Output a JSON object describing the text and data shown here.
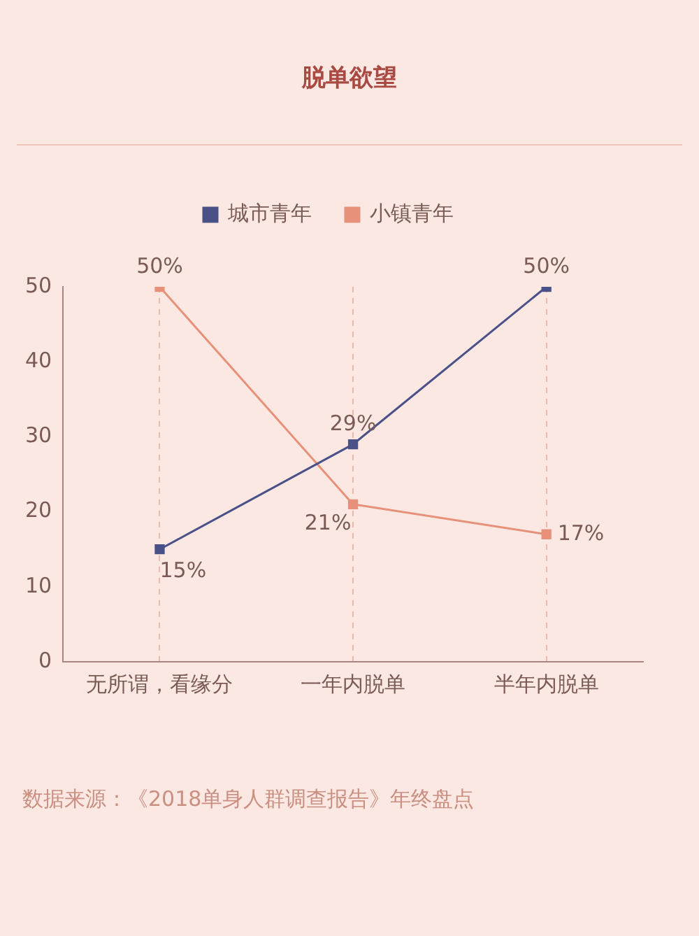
{
  "chart_data": {
    "type": "line",
    "title": "脱单欲望",
    "categories": [
      "无所谓，看缘分",
      "一年内脱单",
      "半年内脱单"
    ],
    "series": [
      {
        "name": "城市青年",
        "color": "#4a5088",
        "values": [
          15,
          29,
          50
        ],
        "value_labels": [
          "15%",
          "29%",
          "50%"
        ]
      },
      {
        "name": "小镇青年",
        "color": "#e8917a",
        "values": [
          50,
          21,
          17
        ],
        "value_labels": [
          "50%",
          "21%",
          "17%"
        ]
      }
    ],
    "ylim": [
      0,
      50
    ],
    "yticks": [
      0,
      10,
      20,
      30,
      40,
      50
    ],
    "grid": "x",
    "legend": "top",
    "marker": "square",
    "line_style": "solid",
    "annotations": [
      "数据来源：《2018单身人群调查报告》年终盘点"
    ]
  }
}
